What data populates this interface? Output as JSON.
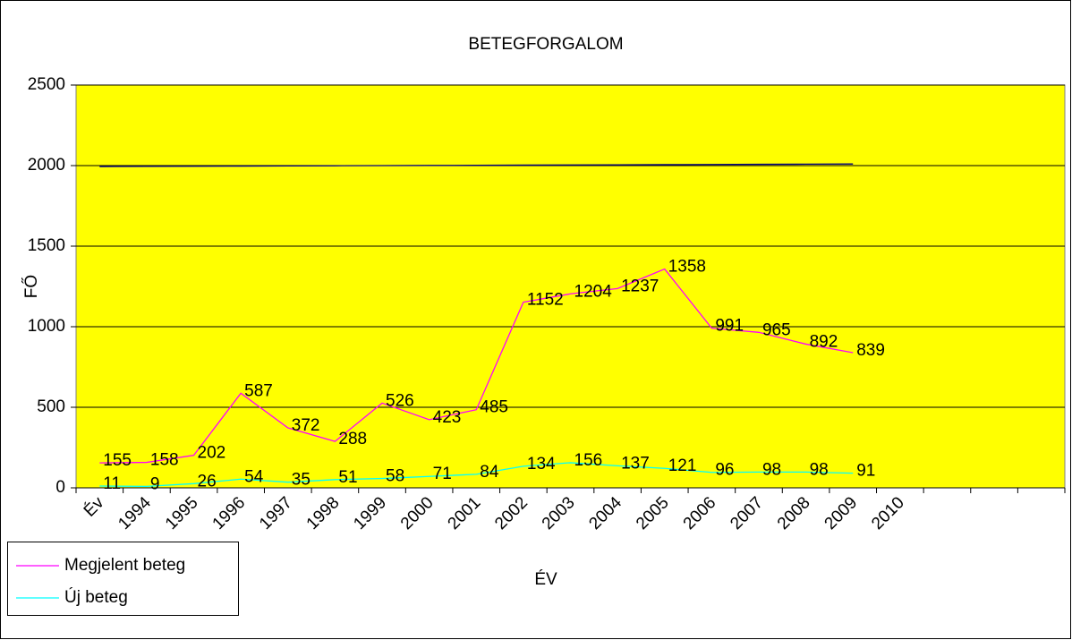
{
  "chart_data": {
    "type": "line",
    "title": "BETEGFORGALOM",
    "x_label": "ÉV",
    "y_label": "FŐ",
    "categories": [
      "Év",
      "1994",
      "1995",
      "1996",
      "1997",
      "1998",
      "1999",
      "2000",
      "2001",
      "2002",
      "2003",
      "2004",
      "2005",
      "2006",
      "2007",
      "2008",
      "2009",
      "2010",
      null,
      null,
      null
    ],
    "series": [
      {
        "name": "Megjelent beteg",
        "color": "#ff00ff",
        "labels": true,
        "values": [
          155,
          158,
          202,
          587,
          372,
          288,
          526,
          423,
          485,
          1152,
          1204,
          1237,
          1358,
          991,
          965,
          892,
          839,
          null,
          null,
          null,
          null
        ]
      },
      {
        "name": "Új beteg",
        "color": "#00ffff",
        "labels": true,
        "values": [
          11,
          9,
          26,
          54,
          35,
          51,
          58,
          71,
          84,
          134,
          156,
          137,
          121,
          96,
          98,
          98,
          91,
          null,
          null,
          null,
          null
        ]
      },
      {
        "color": "#000080",
        "labels": false,
        "values": [
          1994,
          1995,
          1996,
          1997,
          1998,
          1999,
          2000,
          2001,
          2002,
          2003,
          2004,
          2005,
          2006,
          2007,
          2008,
          2009,
          2010,
          null,
          null,
          null,
          null
        ]
      }
    ],
    "ylim": [
      0,
      2500
    ],
    "yticks": [
      0,
      500,
      1000,
      1500,
      2000,
      2500
    ],
    "grid": true,
    "plot_color": "#ffff00"
  }
}
